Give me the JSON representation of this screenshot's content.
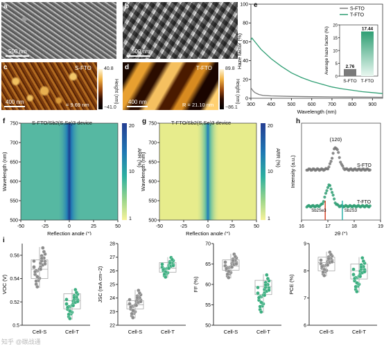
{
  "panels": {
    "a": {
      "label": "a",
      "scale": "500 nm"
    },
    "b": {
      "label": "b",
      "scale": "500 nm"
    },
    "c": {
      "label": "c",
      "tag": "S-FTO",
      "scale": "400 nm",
      "roughness": "= 9.69 nm",
      "cbar_max": "40.8",
      "cbar_min": "−41.0",
      "cbar_title": "Height (nm)"
    },
    "d": {
      "label": "d",
      "tag": "T-FTO",
      "scale": "400 nm",
      "roughness": "R = 21.10 nm",
      "cbar_max": "89.8",
      "cbar_min": "−86.1",
      "cbar_title": "Height (nm)"
    },
    "e": {
      "label": "e"
    },
    "f": {
      "label": "f",
      "title": "S-FTO/Sb2(S,Se)3 device"
    },
    "g": {
      "label": "g",
      "title": "T-FTO/Sb2(S,Se)3 device"
    },
    "h": {
      "label": "h"
    },
    "i": {
      "label": "i"
    }
  },
  "chart_data": [
    {
      "id": "e",
      "type": "line",
      "xlabel": "Wavelength (nm)",
      "ylabel": "Haze factor (%)",
      "xlim": [
        300,
        950
      ],
      "ylim": [
        0,
        100
      ],
      "xticks": [
        300,
        400,
        500,
        600,
        700,
        800,
        900
      ],
      "yticks": [
        0,
        20,
        40,
        60,
        80,
        100
      ],
      "legend": [
        "S-FTO",
        "T-FTO"
      ],
      "legend_position": "top-right",
      "colors": {
        "S-FTO": "#7a7a7a",
        "T-FTO": "#2f9e73"
      },
      "series": [
        {
          "name": "S-FTO",
          "x": [
            300,
            310,
            320,
            340,
            360,
            400,
            500,
            600,
            700,
            800,
            900,
            950
          ],
          "y": [
            11,
            8,
            6,
            4,
            3,
            2.5,
            2,
            1.7,
            1.5,
            1.3,
            1.2,
            1.1
          ]
        },
        {
          "name": "T-FTO",
          "x": [
            300,
            305,
            320,
            350,
            400,
            450,
            500,
            550,
            600,
            650,
            700,
            750,
            800,
            850,
            900,
            950
          ],
          "y": [
            62,
            64,
            60,
            52,
            42,
            34,
            27,
            22,
            18,
            15,
            12,
            10,
            8.5,
            7,
            6,
            5
          ]
        }
      ],
      "inset": {
        "type": "bar",
        "ylabel": "Average haze factor (%)",
        "ylim": [
          0,
          20
        ],
        "yticks": [
          0,
          5,
          10,
          15,
          20
        ],
        "categories": [
          "S-FTO",
          "T-FTO"
        ],
        "values": [
          2.76,
          17.44
        ],
        "value_labels": [
          "2.76",
          "17.44"
        ]
      }
    },
    {
      "id": "f",
      "type": "heatmap",
      "xlabel": "Reflection angle (°)",
      "ylabel": "Wavelength (nm)",
      "xlim": [
        -50,
        50
      ],
      "ylim": [
        500,
        750
      ],
      "xticks": [
        -50,
        -25,
        0,
        25,
        50
      ],
      "yticks": [
        500,
        550,
        600,
        650,
        700,
        750
      ],
      "colorbar": {
        "label": "ARR (%)",
        "max": 20,
        "min": 1,
        "ticks": [
          20,
          10,
          1
        ]
      }
    },
    {
      "id": "g",
      "type": "heatmap",
      "xlabel": "Reflection angle (°)",
      "ylabel": "Wavelength (nm)",
      "xlim": [
        -50,
        50
      ],
      "ylim": [
        500,
        750
      ],
      "xticks": [
        -50,
        -25,
        0,
        25,
        50
      ],
      "yticks": [
        500,
        550,
        600,
        650,
        700,
        750
      ],
      "colorbar": {
        "label": "ARR (%)",
        "max": 20,
        "min": 1,
        "ticks": [
          20,
          10,
          1
        ]
      }
    },
    {
      "id": "h",
      "type": "line",
      "xlabel": "2θ (°)",
      "ylabel": "Intensity (a.u.)",
      "xlim": [
        16,
        19
      ],
      "xticks": [
        16,
        17,
        18,
        19
      ],
      "peak_label": "(120)",
      "series": [
        {
          "name": "S-FTO",
          "color": "#777777",
          "peak": 17.3
        },
        {
          "name": "T-FTO",
          "color": "#2f9e73",
          "peak": 17.05
        }
      ],
      "references": [
        {
          "name": "Sb2Se3",
          "x": 16.9,
          "color": "#d9472b"
        },
        {
          "name": "Sb2S3",
          "x": 17.55,
          "color": "#2bb1a8"
        }
      ]
    },
    {
      "id": "i1",
      "type": "scatter",
      "ylabel": "VOC (V)",
      "categories": [
        "Cell-S",
        "Cell-T"
      ],
      "ylim": [
        0.5,
        0.57
      ],
      "yticks": [
        0.5,
        0.52,
        0.54,
        0.56
      ],
      "box": [
        {
          "q1": 0.54,
          "median": 0.548,
          "q3": 0.556,
          "min": 0.532,
          "max": 0.567
        },
        {
          "q1": 0.514,
          "median": 0.521,
          "q3": 0.527,
          "min": 0.505,
          "max": 0.531
        }
      ]
    },
    {
      "id": "i2",
      "type": "scatter",
      "ylabel": "JSC (mA cm−2)",
      "categories": [
        "Cell-S",
        "Cell-T"
      ],
      "ylim": [
        22,
        28
      ],
      "yticks": [
        22,
        23,
        24,
        25,
        26,
        27,
        28
      ],
      "box": [
        {
          "q1": 23.2,
          "median": 23.5,
          "q3": 23.8,
          "min": 22.5,
          "max": 24.6
        },
        {
          "q1": 25.9,
          "median": 26.2,
          "q3": 26.6,
          "min": 25.5,
          "max": 27.0
        }
      ]
    },
    {
      "id": "i3",
      "type": "scatter",
      "ylabel": "FF (%)",
      "categories": [
        "Cell-S",
        "Cell-T"
      ],
      "ylim": [
        50,
        70
      ],
      "yticks": [
        50,
        55,
        60,
        65,
        70
      ],
      "box": [
        {
          "q1": 63.5,
          "median": 64.5,
          "q3": 66.0,
          "min": 61.5,
          "max": 67.5
        },
        {
          "q1": 57.5,
          "median": 59.5,
          "q3": 61.0,
          "min": 53.0,
          "max": 62.5
        }
      ]
    },
    {
      "id": "i4",
      "type": "scatter",
      "ylabel": "PCE (%)",
      "categories": [
        "Cell-S",
        "Cell-T"
      ],
      "ylim": [
        6,
        9
      ],
      "yticks": [
        6,
        7,
        8,
        9
      ],
      "box": [
        {
          "q1": 8.0,
          "median": 8.3,
          "q3": 8.5,
          "min": 7.8,
          "max": 8.7
        },
        {
          "q1": 7.7,
          "median": 8.0,
          "q3": 8.25,
          "min": 7.2,
          "max": 8.5
        }
      ]
    }
  ],
  "watermark": "知乎 @碳战通"
}
